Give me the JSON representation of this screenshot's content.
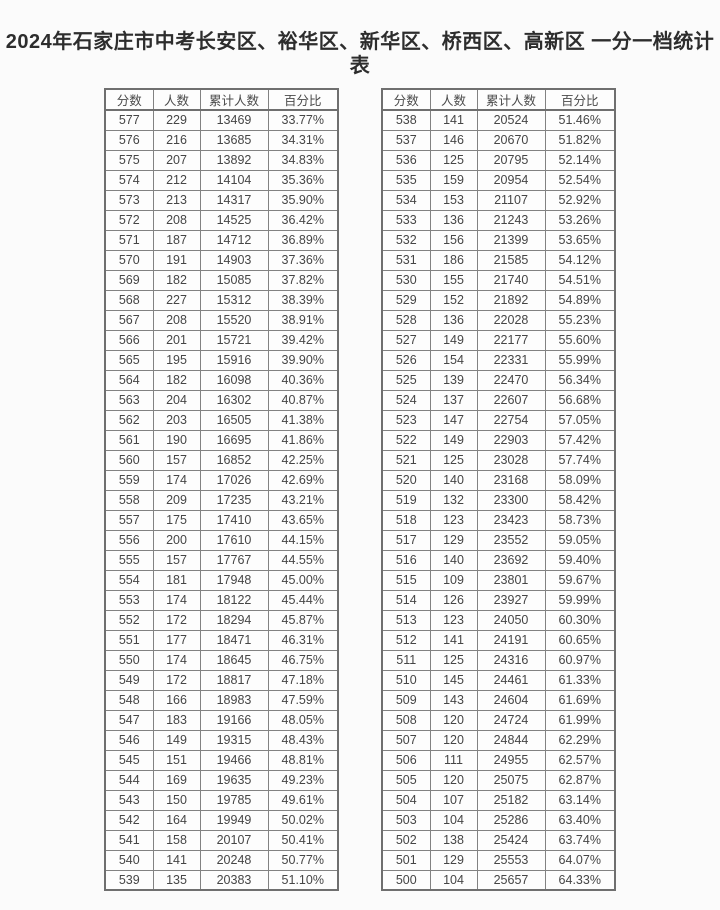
{
  "title": "2024年石家庄市中考长安区、裕华区、新华区、桥西区、高新区 一分一档统计表",
  "colors": {
    "background": "#fbfbfb",
    "border": "#828282",
    "text": "#454545",
    "title_text": "#2d2d2d"
  },
  "tables": [
    {
      "headers": [
        "分数",
        "人数",
        "累计人数",
        "百分比"
      ],
      "rows": [
        [
          "577",
          "229",
          "13469",
          "33.77%"
        ],
        [
          "576",
          "216",
          "13685",
          "34.31%"
        ],
        [
          "575",
          "207",
          "13892",
          "34.83%"
        ],
        [
          "574",
          "212",
          "14104",
          "35.36%"
        ],
        [
          "573",
          "213",
          "14317",
          "35.90%"
        ],
        [
          "572",
          "208",
          "14525",
          "36.42%"
        ],
        [
          "571",
          "187",
          "14712",
          "36.89%"
        ],
        [
          "570",
          "191",
          "14903",
          "37.36%"
        ],
        [
          "569",
          "182",
          "15085",
          "37.82%"
        ],
        [
          "568",
          "227",
          "15312",
          "38.39%"
        ],
        [
          "567",
          "208",
          "15520",
          "38.91%"
        ],
        [
          "566",
          "201",
          "15721",
          "39.42%"
        ],
        [
          "565",
          "195",
          "15916",
          "39.90%"
        ],
        [
          "564",
          "182",
          "16098",
          "40.36%"
        ],
        [
          "563",
          "204",
          "16302",
          "40.87%"
        ],
        [
          "562",
          "203",
          "16505",
          "41.38%"
        ],
        [
          "561",
          "190",
          "16695",
          "41.86%"
        ],
        [
          "560",
          "157",
          "16852",
          "42.25%"
        ],
        [
          "559",
          "174",
          "17026",
          "42.69%"
        ],
        [
          "558",
          "209",
          "17235",
          "43.21%"
        ],
        [
          "557",
          "175",
          "17410",
          "43.65%"
        ],
        [
          "556",
          "200",
          "17610",
          "44.15%"
        ],
        [
          "555",
          "157",
          "17767",
          "44.55%"
        ],
        [
          "554",
          "181",
          "17948",
          "45.00%"
        ],
        [
          "553",
          "174",
          "18122",
          "45.44%"
        ],
        [
          "552",
          "172",
          "18294",
          "45.87%"
        ],
        [
          "551",
          "177",
          "18471",
          "46.31%"
        ],
        [
          "550",
          "174",
          "18645",
          "46.75%"
        ],
        [
          "549",
          "172",
          "18817",
          "47.18%"
        ],
        [
          "548",
          "166",
          "18983",
          "47.59%"
        ],
        [
          "547",
          "183",
          "19166",
          "48.05%"
        ],
        [
          "546",
          "149",
          "19315",
          "48.43%"
        ],
        [
          "545",
          "151",
          "19466",
          "48.81%"
        ],
        [
          "544",
          "169",
          "19635",
          "49.23%"
        ],
        [
          "543",
          "150",
          "19785",
          "49.61%"
        ],
        [
          "542",
          "164",
          "19949",
          "50.02%"
        ],
        [
          "541",
          "158",
          "20107",
          "50.41%"
        ],
        [
          "540",
          "141",
          "20248",
          "50.77%"
        ],
        [
          "539",
          "135",
          "20383",
          "51.10%"
        ]
      ]
    },
    {
      "headers": [
        "分数",
        "人数",
        "累计人数",
        "百分比"
      ],
      "rows": [
        [
          "538",
          "141",
          "20524",
          "51.46%"
        ],
        [
          "537",
          "146",
          "20670",
          "51.82%"
        ],
        [
          "536",
          "125",
          "20795",
          "52.14%"
        ],
        [
          "535",
          "159",
          "20954",
          "52.54%"
        ],
        [
          "534",
          "153",
          "21107",
          "52.92%"
        ],
        [
          "533",
          "136",
          "21243",
          "53.26%"
        ],
        [
          "532",
          "156",
          "21399",
          "53.65%"
        ],
        [
          "531",
          "186",
          "21585",
          "54.12%"
        ],
        [
          "530",
          "155",
          "21740",
          "54.51%"
        ],
        [
          "529",
          "152",
          "21892",
          "54.89%"
        ],
        [
          "528",
          "136",
          "22028",
          "55.23%"
        ],
        [
          "527",
          "149",
          "22177",
          "55.60%"
        ],
        [
          "526",
          "154",
          "22331",
          "55.99%"
        ],
        [
          "525",
          "139",
          "22470",
          "56.34%"
        ],
        [
          "524",
          "137",
          "22607",
          "56.68%"
        ],
        [
          "523",
          "147",
          "22754",
          "57.05%"
        ],
        [
          "522",
          "149",
          "22903",
          "57.42%"
        ],
        [
          "521",
          "125",
          "23028",
          "57.74%"
        ],
        [
          "520",
          "140",
          "23168",
          "58.09%"
        ],
        [
          "519",
          "132",
          "23300",
          "58.42%"
        ],
        [
          "518",
          "123",
          "23423",
          "58.73%"
        ],
        [
          "517",
          "129",
          "23552",
          "59.05%"
        ],
        [
          "516",
          "140",
          "23692",
          "59.40%"
        ],
        [
          "515",
          "109",
          "23801",
          "59.67%"
        ],
        [
          "514",
          "126",
          "23927",
          "59.99%"
        ],
        [
          "513",
          "123",
          "24050",
          "60.30%"
        ],
        [
          "512",
          "141",
          "24191",
          "60.65%"
        ],
        [
          "511",
          "125",
          "24316",
          "60.97%"
        ],
        [
          "510",
          "145",
          "24461",
          "61.33%"
        ],
        [
          "509",
          "143",
          "24604",
          "61.69%"
        ],
        [
          "508",
          "120",
          "24724",
          "61.99%"
        ],
        [
          "507",
          "120",
          "24844",
          "62.29%"
        ],
        [
          "506",
          "111",
          "24955",
          "62.57%"
        ],
        [
          "505",
          "120",
          "25075",
          "62.87%"
        ],
        [
          "504",
          "107",
          "25182",
          "63.14%"
        ],
        [
          "503",
          "104",
          "25286",
          "63.40%"
        ],
        [
          "502",
          "138",
          "25424",
          "63.74%"
        ],
        [
          "501",
          "129",
          "25553",
          "64.07%"
        ],
        [
          "500",
          "104",
          "25657",
          "64.33%"
        ]
      ]
    }
  ]
}
